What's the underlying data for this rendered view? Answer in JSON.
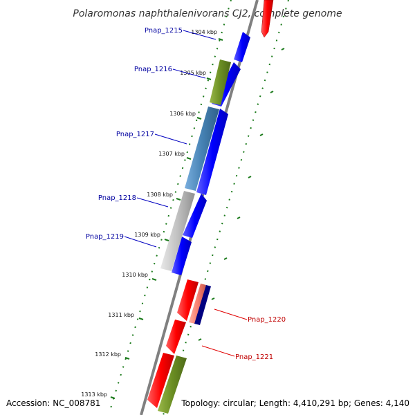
{
  "title": "Polaromonas naphthalenivorans CJ2, complete genome",
  "footer": {
    "accession": "Accession: NC_008781",
    "summary": "Topology: circular; Length: 4,410,291 bp; Genes: 4,140"
  },
  "ticks": [
    "1304 kbp",
    "1305 kbp",
    "1306 kbp",
    "1307 kbp",
    "1308 kbp",
    "1309 kbp",
    "1310 kbp",
    "1311 kbp",
    "1312 kbp",
    "1313 kbp"
  ],
  "gene_labels": [
    {
      "text": "Pnap_1215",
      "color": "#0000a0"
    },
    {
      "text": "Pnap_1216",
      "color": "#0000a0"
    },
    {
      "text": "Pnap_1217",
      "color": "#0000a0"
    },
    {
      "text": "Pnap_1218",
      "color": "#0000a0"
    },
    {
      "text": "Pnap_1219",
      "color": "#0000a0"
    },
    {
      "text": "Pnap_1220",
      "color": "#c00000"
    },
    {
      "text": "Pnap_1221",
      "color": "#c00000"
    }
  ],
  "colors": {
    "forward_cds": "#0000ff",
    "reverse_cds": "#ff0000",
    "backbone": "#808080",
    "tick": "#1a7a1a",
    "olive_feature": "#6b8e23",
    "steelblue_feature": "#4682b4",
    "grey_feature": "#c0c0c0",
    "salmon_feature": "#fa8072",
    "navy_feature": "#000080"
  }
}
